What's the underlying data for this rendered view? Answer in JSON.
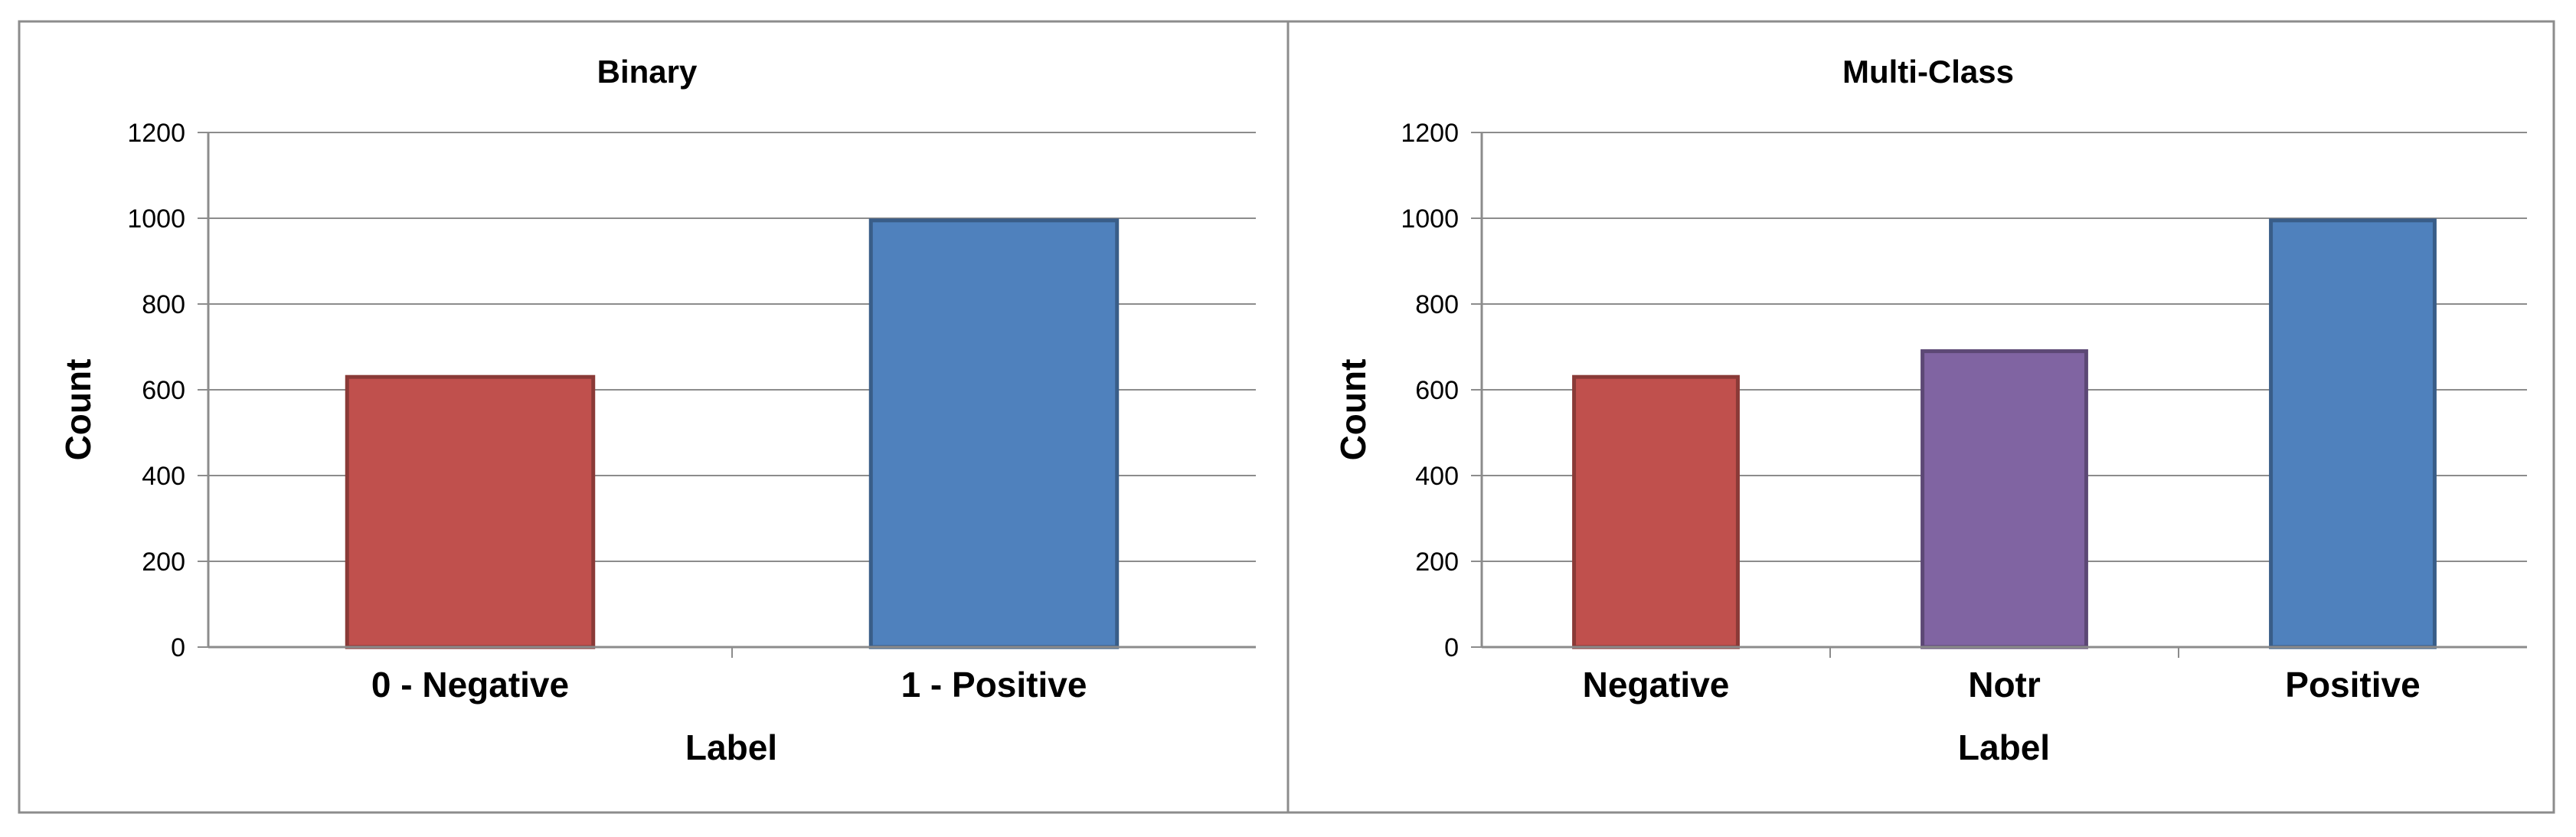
{
  "chart_data": [
    {
      "type": "bar",
      "title": "Binary",
      "xlabel": "Label",
      "ylabel": "Count",
      "ylim": [
        0,
        1200
      ],
      "yticks": [
        0,
        200,
        400,
        600,
        800,
        1000,
        1200
      ],
      "grid": true,
      "categories": [
        "0 - Negative",
        "1 - Positive"
      ],
      "values": [
        630,
        995
      ],
      "colors": [
        "#C0504D",
        "#4F81BD"
      ]
    },
    {
      "type": "bar",
      "title": "Multi-Class",
      "xlabel": "Label",
      "ylabel": "Count",
      "ylim": [
        0,
        1200
      ],
      "yticks": [
        0,
        200,
        400,
        600,
        800,
        1000,
        1200
      ],
      "grid": true,
      "categories": [
        "Negative",
        "Notr",
        "Positive"
      ],
      "values": [
        630,
        690,
        995
      ],
      "colors": [
        "#C0504D",
        "#8064A2",
        "#4F81BD"
      ]
    }
  ]
}
